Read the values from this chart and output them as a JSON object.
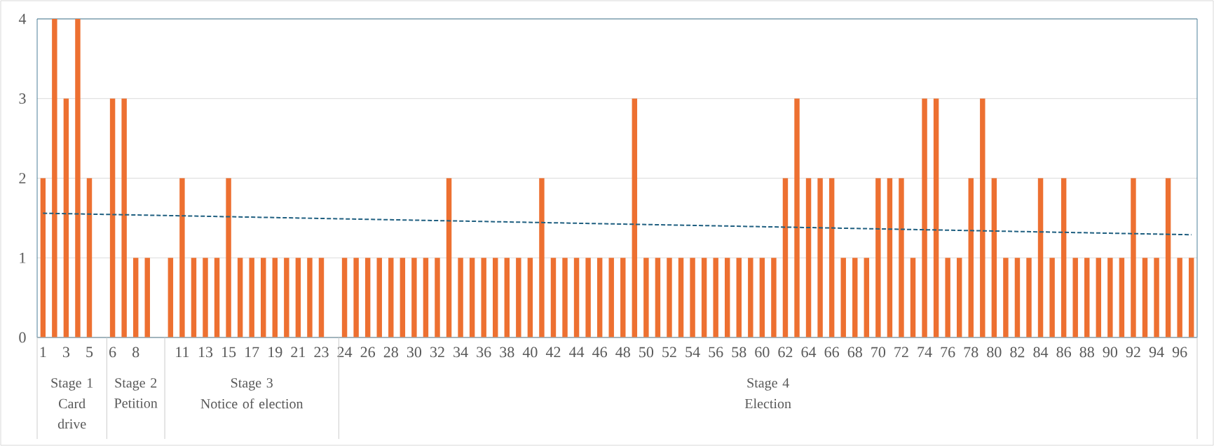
{
  "chart_data": {
    "type": "bar",
    "categories": [
      "1",
      null,
      "3",
      null,
      "5",
      null,
      "6",
      null,
      "8",
      null,
      null,
      null,
      "11",
      null,
      "13",
      null,
      "15",
      null,
      "17",
      null,
      "19",
      null,
      "21",
      null,
      "23",
      null,
      "24",
      null,
      "26",
      null,
      "28",
      null,
      "30",
      null,
      "32",
      null,
      "34",
      null,
      "36",
      null,
      "38",
      null,
      "40",
      null,
      "42",
      null,
      "44",
      null,
      "46",
      null,
      "48",
      null,
      "50",
      null,
      "52",
      null,
      "54",
      null,
      "56",
      null,
      "58",
      null,
      "60",
      null,
      "62",
      null,
      "64",
      null,
      "66",
      null,
      "68",
      null,
      "70",
      null,
      "72",
      null,
      "74",
      null,
      "76",
      null,
      "78",
      null,
      "80",
      null,
      "82",
      null,
      "84",
      null,
      "86",
      null,
      "88",
      null,
      "90",
      null,
      "92",
      null,
      "94",
      null,
      "96",
      null
    ],
    "series": [
      {
        "color": "#ed7031",
        "values": [
          2,
          4,
          3,
          4,
          2,
          null,
          3,
          3,
          1,
          1,
          null,
          1,
          2,
          1,
          1,
          1,
          2,
          1,
          1,
          1,
          1,
          1,
          1,
          1,
          1,
          null,
          1,
          1,
          1,
          1,
          1,
          1,
          1,
          1,
          1,
          2,
          1,
          1,
          1,
          1,
          1,
          1,
          1,
          2,
          1,
          1,
          1,
          1,
          1,
          1,
          1,
          3,
          1,
          1,
          1,
          1,
          1,
          1,
          1,
          1,
          1,
          1,
          1,
          1,
          2,
          3,
          2,
          2,
          2,
          1,
          1,
          1,
          2,
          2,
          2,
          1,
          3,
          3,
          1,
          1,
          2,
          3,
          2,
          1,
          1,
          1,
          2,
          1,
          2,
          1,
          1,
          1,
          1,
          1,
          2,
          1,
          1,
          2,
          1,
          1
        ]
      },
      {
        "type": "line",
        "color": "#1f5f80",
        "line_style": "dashed",
        "values": [
          1.56,
          null,
          null,
          null,
          null,
          null,
          null,
          null,
          null,
          null,
          null,
          null,
          null,
          null,
          null,
          null,
          null,
          null,
          null,
          null,
          null,
          null,
          null,
          null,
          null,
          null,
          null,
          null,
          null,
          null,
          null,
          null,
          null,
          null,
          null,
          null,
          null,
          null,
          null,
          null,
          null,
          null,
          null,
          null,
          null,
          null,
          null,
          null,
          null,
          null,
          null,
          null,
          null,
          null,
          null,
          null,
          null,
          null,
          null,
          null,
          null,
          null,
          null,
          null,
          null,
          null,
          null,
          null,
          null,
          null,
          null,
          null,
          null,
          null,
          null,
          null,
          null,
          null,
          null,
          null,
          null,
          null,
          null,
          null,
          null,
          null,
          null,
          null,
          null,
          null,
          null,
          null,
          null,
          null,
          null,
          null,
          null,
          null,
          null,
          1.29
        ]
      }
    ],
    "ylim": [
      0,
      4
    ],
    "yticks": [
      0,
      1,
      2,
      3,
      4
    ],
    "grid": "y",
    "annotations": [
      "Stage 1",
      "Card drive",
      "Stage 2",
      "Petition",
      "Stage 3",
      "Notice of election",
      "Stage 4",
      "Election"
    ]
  }
}
